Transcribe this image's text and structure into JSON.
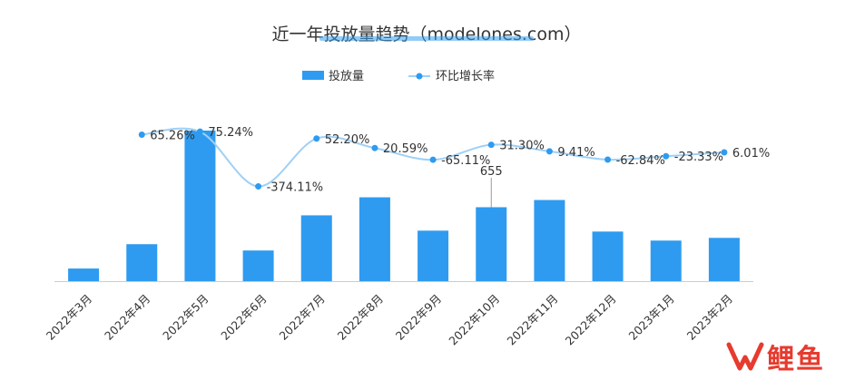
{
  "chart_data": {
    "type": "bar",
    "title": "近一年投放量趋势（modelones.com）",
    "categories": [
      "2022年3月",
      "2022年4月",
      "2022年5月",
      "2022年6月",
      "2022年7月",
      "2022年8月",
      "2022年9月",
      "2022年10月",
      "2022年11月",
      "2022年12月",
      "2023年1月",
      "2023年2月"
    ],
    "series": [
      {
        "name": "投放量",
        "type": "bar",
        "values": [
          70,
          205,
          835,
          170,
          365,
          465,
          280,
          410,
          450,
          275,
          225,
          240
        ]
      },
      {
        "name": "环比增长率",
        "type": "line",
        "values": [
          null,
          65.26,
          75.24,
          -374.11,
          52.2,
          20.59,
          -65.11,
          31.3,
          9.41,
          -62.84,
          -23.33,
          6.01
        ],
        "labels": [
          "",
          "65.26%",
          "75.24%",
          "-374.11%",
          "52.20%",
          "20.59%",
          "-65.11%",
          "31.30%",
          "9.41%",
          "-62.84%",
          "-23.33%",
          "6.01%"
        ]
      }
    ],
    "annotation": "655",
    "legend_position": "top-center",
    "colors": {
      "bar": "#2e9bf0",
      "line": "#9fd0f6",
      "point": "#2e9bf0",
      "axis": "#cccccc"
    },
    "grid": false
  },
  "watermark": {
    "text": "鲤鱼"
  }
}
